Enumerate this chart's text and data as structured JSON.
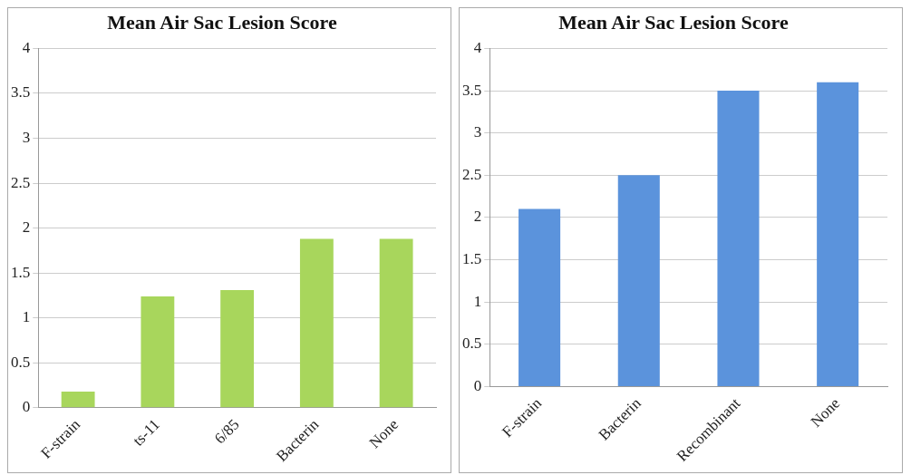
{
  "chart_data": [
    {
      "type": "bar",
      "title": "Mean Air Sac Lesion Score",
      "categories": [
        "F-strain",
        "ts-11",
        "6/85",
        "Bacterin",
        "None"
      ],
      "values": [
        0.18,
        1.24,
        1.31,
        1.88,
        1.88
      ],
      "color": "#a8d65c",
      "ylim": [
        0,
        4
      ],
      "yticks": [
        0,
        0.5,
        1,
        1.5,
        2,
        2.5,
        3,
        3.5,
        4
      ],
      "grid": "y"
    },
    {
      "type": "bar",
      "title": "Mean Air Sac Lesion Score",
      "categories": [
        "F-strain",
        "Bacterin",
        "Recombinant",
        "None"
      ],
      "values": [
        2.1,
        2.5,
        3.5,
        3.6
      ],
      "color": "#5b93dc",
      "ylim": [
        0,
        4
      ],
      "yticks": [
        0,
        0.5,
        1,
        1.5,
        2,
        2.5,
        3,
        3.5,
        4
      ],
      "grid": "y"
    }
  ]
}
